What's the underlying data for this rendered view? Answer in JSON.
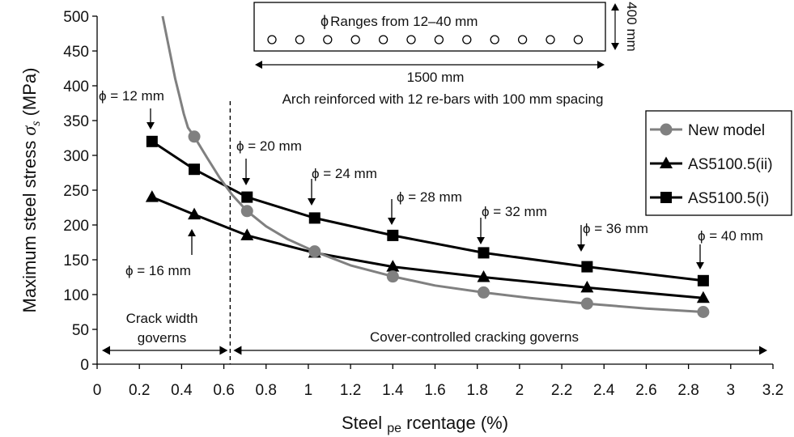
{
  "chart_data": {
    "type": "line",
    "ylabel": "Maximum steel stress",
    "ylabel_symbol": "σ",
    "ylabel_sub": "s",
    "ylabel_unit": "(MPa)",
    "xlabel_pre": "Steel ",
    "xlabel_sub": "pe",
    "xlabel_post": " rcentage (%)",
    "xlim": [
      0,
      3.2
    ],
    "ylim": [
      0,
      500
    ],
    "xticks": [
      "0",
      "0.2",
      "0.4",
      "0.6",
      "0.8",
      "1",
      "1.2",
      "1.4",
      "1.6",
      "1.8",
      "2",
      "2.2",
      "2.4",
      "2.6",
      "2.8",
      "3",
      "3.2"
    ],
    "yticks": [
      "0",
      "50",
      "100",
      "150",
      "200",
      "250",
      "300",
      "350",
      "400",
      "450",
      "500"
    ],
    "colors": {
      "new_model": "#808080",
      "as_ii": "#000000",
      "as_i": "#000000"
    },
    "series": [
      {
        "key": "new_model",
        "name": "New model",
        "marker": "circle",
        "curve": {
          "x": [
            0.31,
            0.33,
            0.35,
            0.37,
            0.39,
            0.41,
            0.43,
            0.46,
            0.52,
            0.58,
            0.64,
            0.71,
            0.8,
            0.9,
            1.03,
            1.2,
            1.4,
            1.6,
            1.83,
            2.05,
            2.32,
            2.6,
            2.87
          ],
          "y": [
            500,
            470,
            440,
            410,
            385,
            360,
            340,
            327,
            297,
            268,
            243,
            220,
            198,
            180,
            162,
            142,
            126,
            113,
            103,
            95,
            87,
            80,
            75
          ]
        },
        "points": {
          "x": [
            0.46,
            0.71,
            1.03,
            1.4,
            1.83,
            2.32,
            2.87
          ],
          "y": [
            327,
            220,
            162,
            126,
            103,
            87,
            75
          ]
        }
      },
      {
        "key": "as_ii",
        "name": "AS5100.5(ii)",
        "marker": "triangle",
        "points": {
          "x": [
            0.26,
            0.46,
            0.71,
            1.03,
            1.4,
            1.83,
            2.32,
            2.87
          ],
          "y": [
            240,
            215,
            185,
            160,
            140,
            125,
            110,
            95
          ]
        }
      },
      {
        "key": "as_i",
        "name": "AS5100.5(i)",
        "marker": "square",
        "points": {
          "x": [
            0.26,
            0.46,
            0.71,
            1.03,
            1.4,
            1.83,
            2.32,
            2.87
          ],
          "y": [
            320,
            280,
            240,
            210,
            185,
            160,
            140,
            120
          ]
        }
      }
    ],
    "diameter_labels": [
      {
        "text": "ϕ = 12 mm"
      },
      {
        "text": "ϕ = 16 mm"
      },
      {
        "text": "ϕ = 20 mm"
      },
      {
        "text": "ϕ = 24 mm"
      },
      {
        "text": "ϕ = 28 mm"
      },
      {
        "text": "ϕ = 32 mm"
      },
      {
        "text": "ϕ = 36 mm"
      },
      {
        "text": "ϕ = 40 mm"
      }
    ],
    "divider_x": 0.63,
    "regions": {
      "crack_width_line1": "Crack width",
      "crack_width_line2": "governs",
      "cover_controlled": "Cover-controlled cracking governs"
    },
    "inset": {
      "range_label": "Ranges from 12–40 mm",
      "phi_symbol": "ϕ",
      "width_label": "1500 mm",
      "height_label": "400 mm",
      "caption": "Arch reinforced with 12 re-bars with  100 mm spacing",
      "bar_count": 12
    }
  }
}
